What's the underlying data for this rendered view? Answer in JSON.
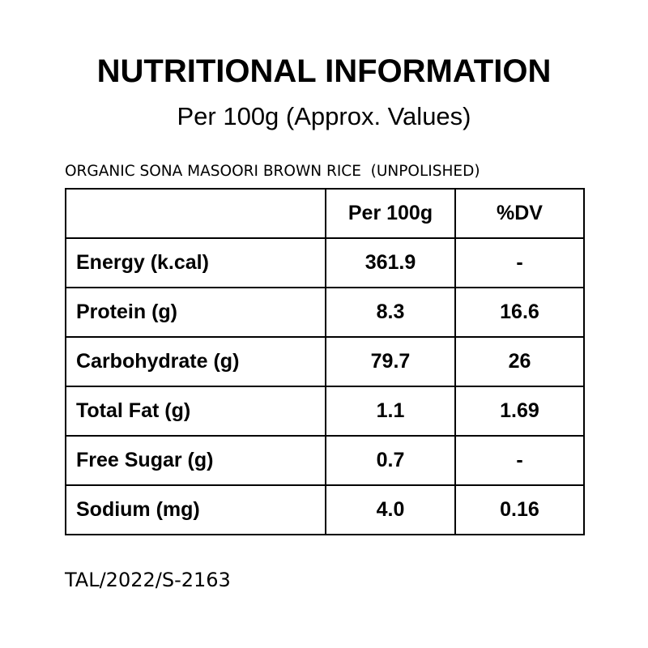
{
  "header": {
    "title": "NUTRITIONAL INFORMATION",
    "subtitle": "Per 100g (Approx. Values)"
  },
  "product_name": "ORGANIC SONA MASOORI BROWN RICE  (UNPOLISHED)",
  "table": {
    "columns": [
      "",
      "Per 100g",
      "%DV"
    ],
    "rows": [
      {
        "nutrient": "Energy (k.cal)",
        "per_100g": "361.9",
        "dv": "-"
      },
      {
        "nutrient": "Protein (g)",
        "per_100g": "8.3",
        "dv": "16.6"
      },
      {
        "nutrient": "Carbohydrate (g)",
        "per_100g": "79.7",
        "dv": "26"
      },
      {
        "nutrient": "Total Fat (g)",
        "per_100g": "1.1",
        "dv": "1.69"
      },
      {
        "nutrient": "Free Sugar (g)",
        "per_100g": "0.7",
        "dv": "-"
      },
      {
        "nutrient": "Sodium (mg)",
        "per_100g": "4.0",
        "dv": "0.16"
      }
    ]
  },
  "footer_code": "TAL/2022/S-2163"
}
